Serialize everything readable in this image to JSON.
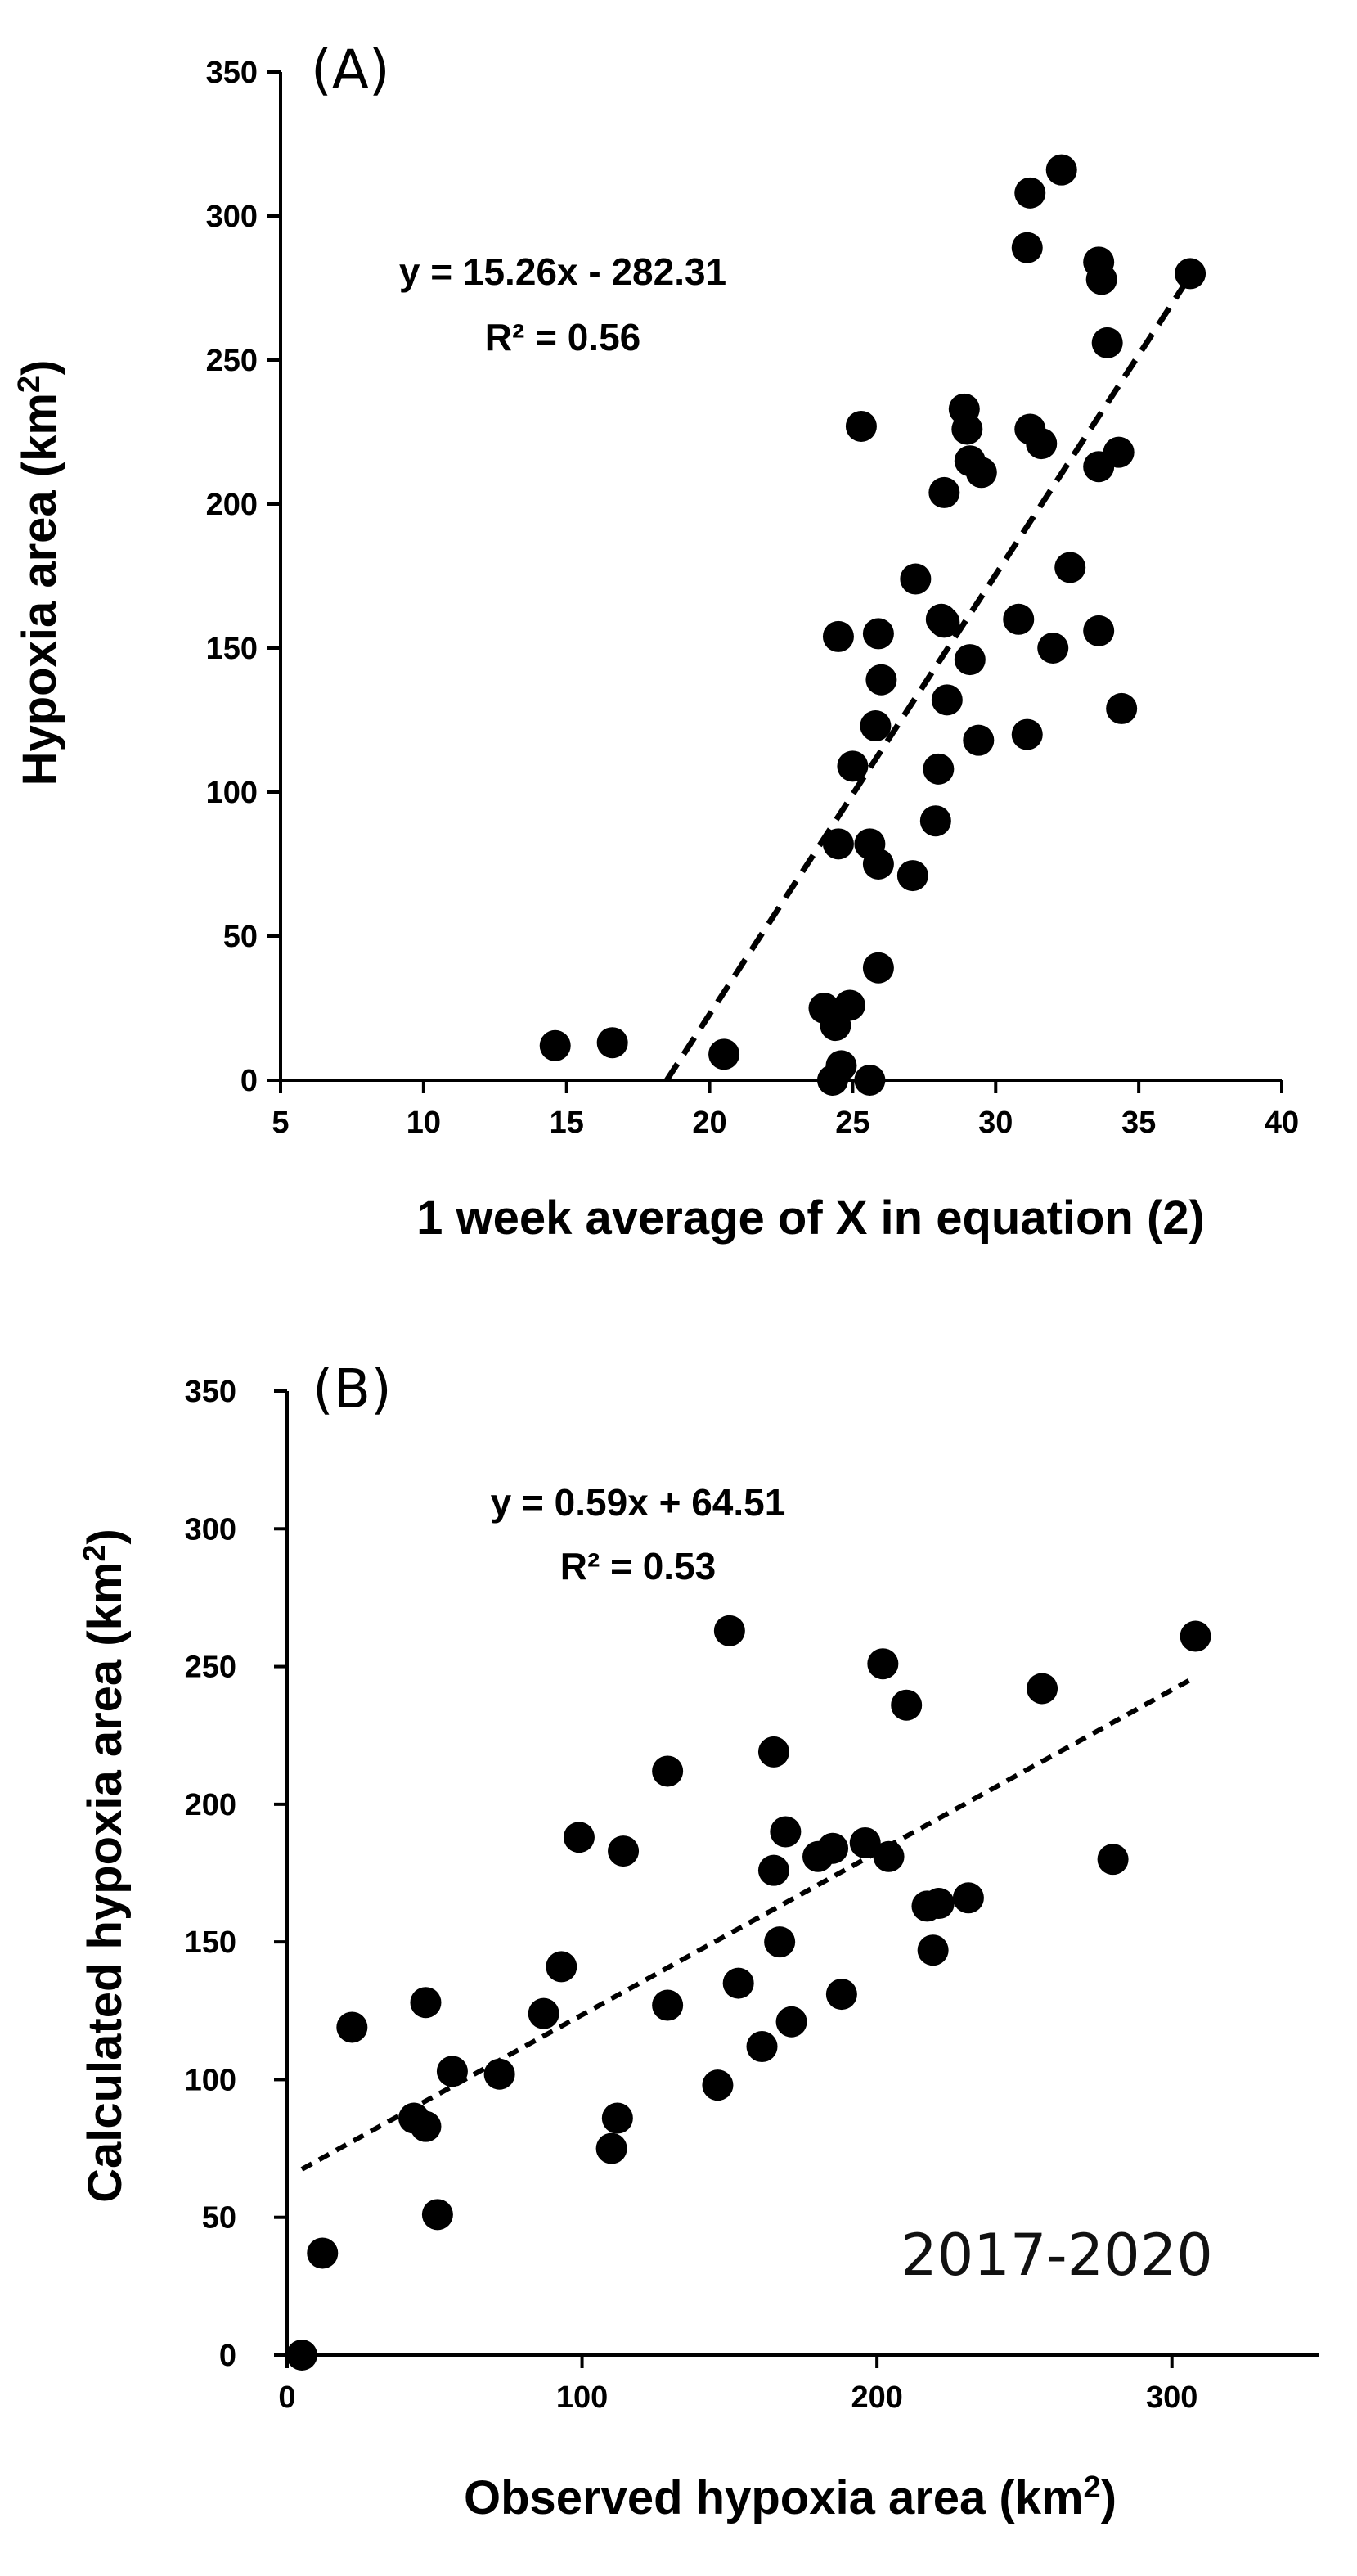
{
  "chart_data": [
    {
      "type": "scatter",
      "panel_label": "(A)",
      "xlabel": "1 week average of X in equation (2)",
      "ylabel_main": "Hypoxia area (km",
      "ylabel_sup": "2",
      "ylabel_end": ")",
      "xlim": [
        5,
        40
      ],
      "ylim": [
        0,
        350
      ],
      "xticks": [
        5,
        10,
        15,
        20,
        25,
        30,
        35,
        40
      ],
      "yticks": [
        0,
        50,
        100,
        150,
        200,
        250,
        300,
        350
      ],
      "equation": "y = 15.26x - 282.31",
      "r2": "R² = 0.56",
      "trendline": {
        "slope": 15.26,
        "intercept": -282.31,
        "x_start": 18.5,
        "x_end": 36.8
      },
      "points": [
        [
          14.6,
          12
        ],
        [
          16.6,
          13
        ],
        [
          20.5,
          9
        ],
        [
          24.0,
          25
        ],
        [
          24.3,
          0
        ],
        [
          24.4,
          19
        ],
        [
          24.6,
          5
        ],
        [
          24.9,
          26
        ],
        [
          25.6,
          0
        ],
        [
          25.9,
          39
        ],
        [
          24.5,
          154
        ],
        [
          25.9,
          155
        ],
        [
          26.0,
          139
        ],
        [
          25.8,
          123
        ],
        [
          25.0,
          109
        ],
        [
          24.5,
          82
        ],
        [
          25.6,
          82
        ],
        [
          25.9,
          75
        ],
        [
          27.1,
          71
        ],
        [
          25.3,
          227
        ],
        [
          27.2,
          174
        ],
        [
          28.1,
          160
        ],
        [
          28.2,
          159
        ],
        [
          28.3,
          132
        ],
        [
          28.0,
          108
        ],
        [
          27.9,
          90
        ],
        [
          28.2,
          204
        ],
        [
          28.9,
          233
        ],
        [
          29.0,
          226
        ],
        [
          29.1,
          215
        ],
        [
          29.5,
          211
        ],
        [
          29.1,
          146
        ],
        [
          29.4,
          118
        ],
        [
          30.8,
          160
        ],
        [
          31.1,
          120
        ],
        [
          31.2,
          226
        ],
        [
          31.6,
          221
        ],
        [
          32.0,
          150
        ],
        [
          32.6,
          178
        ],
        [
          31.2,
          308
        ],
        [
          31.1,
          289
        ],
        [
          32.3,
          316
        ],
        [
          33.6,
          284
        ],
        [
          33.7,
          278
        ],
        [
          33.9,
          256
        ],
        [
          33.6,
          213
        ],
        [
          34.3,
          218
        ],
        [
          33.6,
          156
        ],
        [
          34.4,
          129
        ],
        [
          36.8,
          280
        ]
      ]
    },
    {
      "type": "scatter",
      "panel_label": "(B)",
      "xlabel_main": "Observed hypoxia area (km",
      "xlabel_sup": "2",
      "xlabel_end": ")",
      "ylabel_main": "Calculated hypoxia area (km",
      "ylabel_sup": "2",
      "ylabel_end": ")",
      "xlim": [
        0,
        350
      ],
      "ylim": [
        0,
        350
      ],
      "xticks": [
        0,
        100,
        200,
        300
      ],
      "yticks": [
        0,
        50,
        100,
        150,
        200,
        250,
        300,
        350
      ],
      "equation": "y = 0.59x + 64.51",
      "r2": "R² = 0.53",
      "annotation": "2017-2020",
      "trendline": {
        "slope": 0.59,
        "intercept": 64.51,
        "x_start": 5,
        "x_end": 308
      },
      "points": [
        [
          5,
          0
        ],
        [
          12,
          37
        ],
        [
          22,
          119
        ],
        [
          47,
          128
        ],
        [
          43,
          86
        ],
        [
          47,
          83
        ],
        [
          51,
          51
        ],
        [
          56,
          103
        ],
        [
          72,
          102
        ],
        [
          87,
          124
        ],
        [
          93,
          141
        ],
        [
          99,
          188
        ],
        [
          110,
          75
        ],
        [
          112,
          86
        ],
        [
          114,
          183
        ],
        [
          129,
          212
        ],
        [
          129,
          127
        ],
        [
          146,
          98
        ],
        [
          150,
          263
        ],
        [
          153,
          135
        ],
        [
          161,
          112
        ],
        [
          165,
          219
        ],
        [
          165,
          176
        ],
        [
          167,
          150
        ],
        [
          169,
          190
        ],
        [
          171,
          121
        ],
        [
          180,
          181
        ],
        [
          185,
          184
        ],
        [
          188,
          131
        ],
        [
          196,
          186
        ],
        [
          202,
          251
        ],
        [
          204,
          181
        ],
        [
          210,
          236
        ],
        [
          217,
          163
        ],
        [
          219,
          147
        ],
        [
          221,
          164
        ],
        [
          231,
          166
        ],
        [
          256,
          242
        ],
        [
          280,
          180
        ],
        [
          308,
          261
        ]
      ]
    }
  ]
}
